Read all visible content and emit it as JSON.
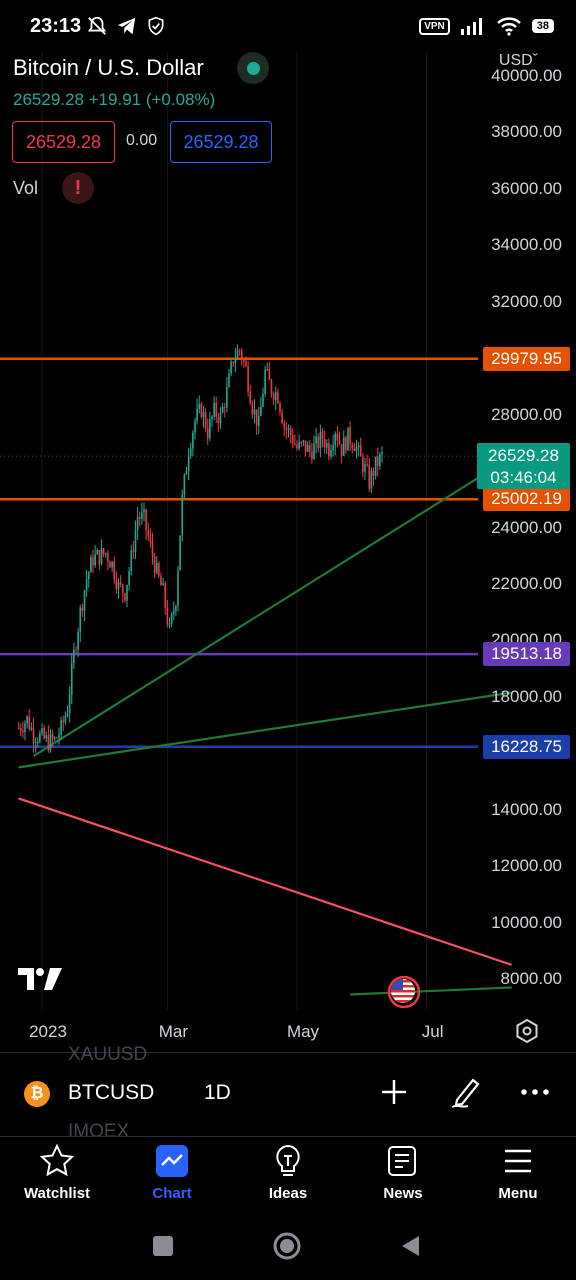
{
  "status_bar": {
    "time": "23:13",
    "vpn": "VPN",
    "battery": "38"
  },
  "header": {
    "title": "Bitcoin / U.S. Dollar",
    "price_change": "26529.28 +19.91 (+0.08%)",
    "bid": "26529.28",
    "spread": "0.00",
    "ask": "26529.28",
    "vol_label": "Vol",
    "vol_warning": "!",
    "currency": "USD",
    "currency_chevron": "ˇ"
  },
  "colors": {
    "background": "#000000",
    "up": "#22ab94",
    "down": "#f23645",
    "accent": "#2962ff",
    "resistance": "#e65100",
    "support_purple": "#673ab7",
    "support_blue": "#1a3fa8",
    "trend_green": "#1e7a36",
    "trend_red": "#f7525f"
  },
  "chart_data": {
    "type": "candlestick",
    "symbol": "BTCUSD",
    "interval": "1D",
    "ylim": [
      7600,
      40500
    ],
    "y_ticks": [
      "40000.00",
      "38000.00",
      "36000.00",
      "34000.00",
      "32000.00",
      "28000.00",
      "24000.00",
      "22000.00",
      "20000.00",
      "18000.00",
      "14000.00",
      "12000.00",
      "10000.00",
      "8000.00"
    ],
    "y_tick_values": [
      40000,
      38000,
      36000,
      34000,
      32000,
      28000,
      24000,
      22000,
      20000,
      18000,
      14000,
      12000,
      10000,
      8000
    ],
    "x_ticks": [
      "2023",
      "Mar",
      "May",
      "Jul"
    ],
    "x_tick_days": [
      0,
      59,
      120,
      181
    ],
    "price_lines": [
      {
        "label": "29979.95",
        "value": 29979.95,
        "color": "#e65100"
      },
      {
        "label": "25002.19",
        "value": 25002.19,
        "color": "#e65100"
      },
      {
        "label": "19513.18",
        "value": 19513.18,
        "color": "#673ab7"
      },
      {
        "label": "16228.75",
        "value": 16228.75,
        "color": "#1a3fa8"
      }
    ],
    "current_price": "26529.28",
    "current_value": 26529.28,
    "countdown": "03:46:04",
    "trend_lines": [
      {
        "from": [
          -4,
          15900
        ],
        "to": [
          221,
          26500
        ],
        "color": "#1e7a36"
      },
      {
        "from": [
          -11,
          15500
        ],
        "to": [
          221,
          18150
        ],
        "color": "#1e7a36"
      },
      {
        "from": [
          -11,
          14400
        ],
        "to": [
          221,
          8500
        ],
        "color": "#f7525f"
      },
      {
        "from": [
          145,
          7450
        ],
        "to": [
          221,
          7700
        ],
        "color": "#1e7a36"
      }
    ],
    "close_path": [
      [
        -11,
        16900
      ],
      [
        -7,
        17200
      ],
      [
        -4,
        16700
      ],
      [
        0,
        16550
      ],
      [
        3,
        16400
      ],
      [
        6,
        16450
      ],
      [
        9,
        16850
      ],
      [
        12,
        17600
      ],
      [
        15,
        19500
      ],
      [
        18,
        21000
      ],
      [
        21,
        22200
      ],
      [
        24,
        22900
      ],
      [
        27,
        23000
      ],
      [
        30,
        23100
      ],
      [
        33,
        22700
      ],
      [
        36,
        21900
      ],
      [
        39,
        21700
      ],
      [
        42,
        22900
      ],
      [
        45,
        24400
      ],
      [
        48,
        24300
      ],
      [
        51,
        23300
      ],
      [
        54,
        22400
      ],
      [
        57,
        21700
      ],
      [
        60,
        20300
      ],
      [
        63,
        21500
      ],
      [
        66,
        25000
      ],
      [
        69,
        26800
      ],
      [
        72,
        27800
      ],
      [
        75,
        28200
      ],
      [
        78,
        27400
      ],
      [
        81,
        28100
      ],
      [
        84,
        27900
      ],
      [
        87,
        28800
      ],
      [
        90,
        30000
      ],
      [
        93,
        30300
      ],
      [
        96,
        29600
      ],
      [
        99,
        28300
      ],
      [
        102,
        27600
      ],
      [
        105,
        29500
      ],
      [
        108,
        28900
      ],
      [
        111,
        28700
      ],
      [
        114,
        27600
      ],
      [
        117,
        27300
      ],
      [
        120,
        26800
      ],
      [
        123,
        26900
      ],
      [
        126,
        26700
      ],
      [
        129,
        26900
      ],
      [
        132,
        27200
      ],
      [
        135,
        26800
      ],
      [
        138,
        27500
      ],
      [
        141,
        26800
      ],
      [
        144,
        27200
      ],
      [
        147,
        27000
      ],
      [
        150,
        26400
      ],
      [
        153,
        25900
      ],
      [
        154,
        25600
      ],
      [
        157,
        26200
      ],
      [
        160,
        26529
      ]
    ]
  },
  "symbol_bar": {
    "ghost_above": "XAUUSD",
    "ghost_below": "IMOEX",
    "coin_glyph": "₿",
    "symbol": "BTCUSD",
    "timeframe": "1D"
  },
  "bottom_nav": [
    {
      "label": "Watchlist",
      "icon": "star-icon"
    },
    {
      "label": "Chart",
      "icon": "chart-icon"
    },
    {
      "label": "Ideas",
      "icon": "lightbulb-icon"
    },
    {
      "label": "News",
      "icon": "news-icon"
    },
    {
      "label": "Menu",
      "icon": "menu-icon"
    }
  ]
}
